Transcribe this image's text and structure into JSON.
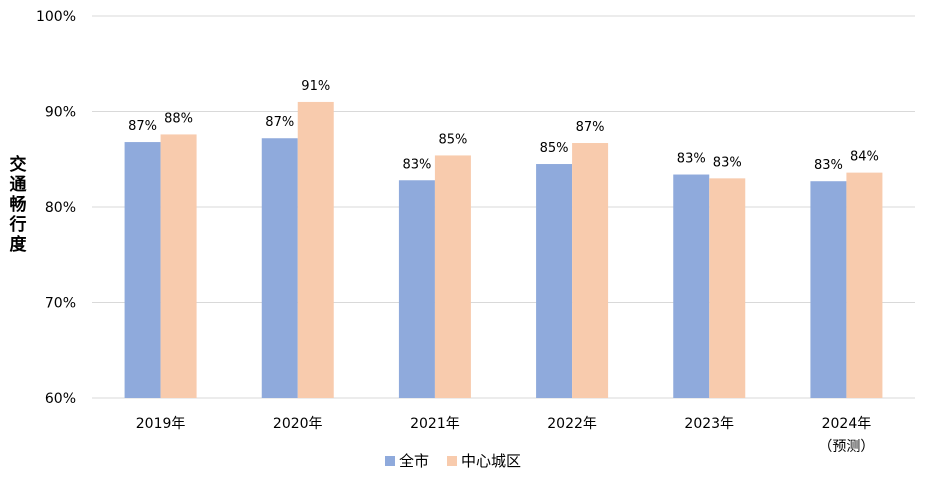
{
  "chart_data": {
    "type": "bar",
    "categories": [
      "2019年",
      "2020年",
      "2021年",
      "2022年",
      "2023年",
      "2024年\n（预测）"
    ],
    "ylabel": "交通畅行度",
    "ylim": [
      60,
      100
    ],
    "yticks": [
      "60%",
      "70%",
      "80%",
      "90%",
      "100%"
    ],
    "grid": true,
    "legend_position": "bottom",
    "series": [
      {
        "name": "全市",
        "color": "#8faadc",
        "values": [
          86.8,
          87.2,
          82.8,
          84.5,
          83.4,
          82.7
        ],
        "labels": [
          "87%",
          "87%",
          "83%",
          "85%",
          "83%",
          "83%"
        ]
      },
      {
        "name": "中心城区",
        "color": "#f8cbad",
        "values": [
          87.6,
          91.0,
          85.4,
          86.7,
          83.0,
          83.6
        ],
        "labels": [
          "88%",
          "91%",
          "85%",
          "87%",
          "83%",
          "84%"
        ]
      }
    ]
  }
}
